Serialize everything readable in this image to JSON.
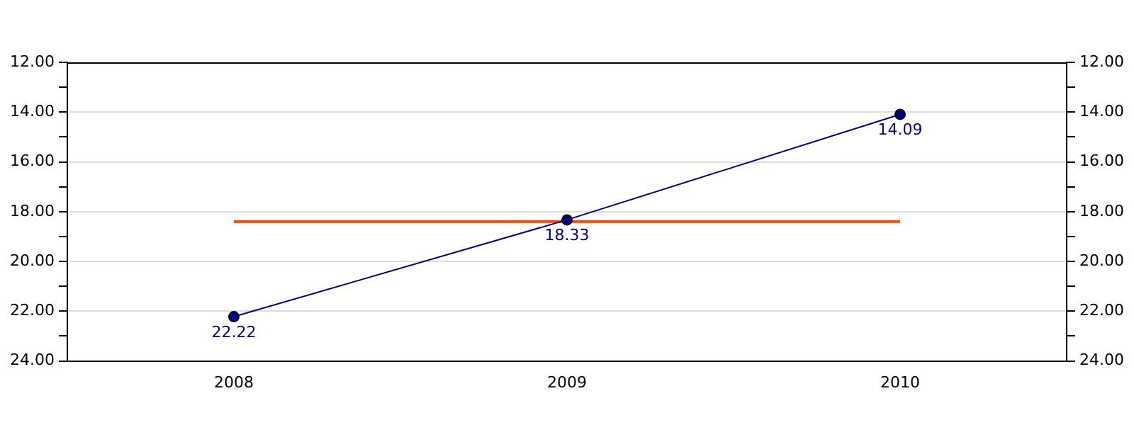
{
  "chart_data": {
    "type": "line",
    "categories": [
      "2008",
      "2009",
      "2010"
    ],
    "series": [
      {
        "color": "#000080",
        "values": [
          22.22,
          18.33,
          14.09
        ],
        "marker": "circle",
        "data_labels": true
      },
      {
        "color": "#ff4500",
        "values": [
          18.4,
          18.4,
          18.4
        ],
        "marker": "none"
      }
    ],
    "ylim": [
      24,
      12
    ],
    "yticks": [
      {
        "value": 12,
        "label": "12.00"
      },
      {
        "value": 13,
        "label": null
      },
      {
        "value": 14,
        "label": "14.00"
      },
      {
        "value": 15,
        "label": null
      },
      {
        "value": 16,
        "label": "16.00"
      },
      {
        "value": 17,
        "label": null
      },
      {
        "value": 18,
        "label": "18.00"
      },
      {
        "value": 19,
        "label": null
      },
      {
        "value": 20,
        "label": "20.00"
      },
      {
        "value": 21,
        "label": null
      },
      {
        "value": 22,
        "label": "22.00"
      },
      {
        "value": 23,
        "label": null
      },
      {
        "value": 24,
        "label": "24.00"
      }
    ],
    "y2lim": [
      24,
      12
    ],
    "y2ticks": [
      {
        "value": 12,
        "label": "12.00"
      },
      {
        "value": 13,
        "label": null
      },
      {
        "value": 14,
        "label": "14.00"
      },
      {
        "value": 15,
        "label": null
      },
      {
        "value": 16,
        "label": "16.00"
      },
      {
        "value": 17,
        "label": null
      },
      {
        "value": 18,
        "label": "18.00"
      },
      {
        "value": 19,
        "label": null
      },
      {
        "value": 20,
        "label": "20.00"
      },
      {
        "value": 21,
        "label": null
      },
      {
        "value": 22,
        "label": "22.00"
      },
      {
        "value": 23,
        "label": null
      },
      {
        "value": 24,
        "label": "24.00"
      }
    ],
    "grid": "y",
    "line_style": "solid"
  }
}
